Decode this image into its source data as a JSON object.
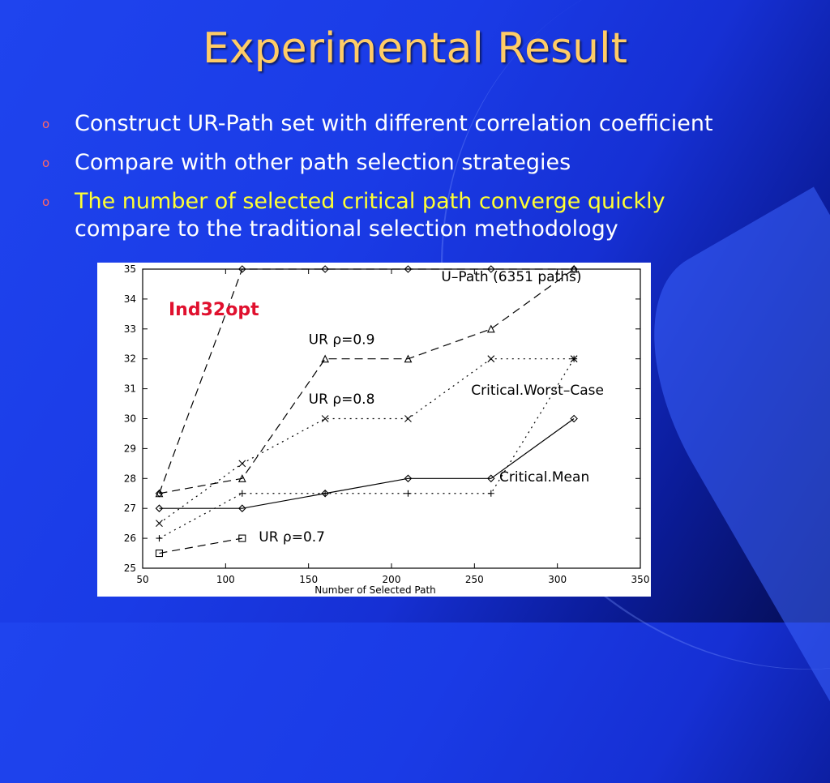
{
  "slide": {
    "title": "Experimental Result",
    "bullets": [
      {
        "marker": "o",
        "text": "Construct UR-Path set with different correlation coefficient",
        "highlight": "",
        "highlight_color": ""
      },
      {
        "marker": "o",
        "text": "Compare with other path selection strategies",
        "highlight": "",
        "highlight_color": ""
      },
      {
        "marker": "o",
        "highlight": "The number of selected critical path converge quickly",
        "text": "compare to the traditional selection methodology",
        "highlight_color": "#ffff33"
      }
    ],
    "colors": {
      "title": "#ffcc66",
      "bullet_text": "#ffffff",
      "bullet_marker": "#ff6666",
      "background": "#1a3be6"
    }
  },
  "chart_data": {
    "type": "line",
    "title": "",
    "xlabel": "Number of Selected Path",
    "ylabel": "",
    "xlim": [
      50,
      350
    ],
    "ylim": [
      25,
      35
    ],
    "x_ticks": [
      50,
      100,
      150,
      200,
      250,
      300,
      350
    ],
    "y_ticks": [
      25,
      26,
      27,
      28,
      29,
      30,
      31,
      32,
      33,
      34,
      35
    ],
    "grid": false,
    "tag": "Ind32opt",
    "tag_color": "#e0102e",
    "series": [
      {
        "name": "U–Path (6351 paths)",
        "style": "dashed",
        "marker": "diamond",
        "x": [
          60,
          110,
          160,
          210,
          260,
          310
        ],
        "y": [
          27.5,
          35,
          35,
          35,
          35,
          35
        ]
      },
      {
        "name": "UR ρ=0.9",
        "style": "dashed",
        "marker": "triangle",
        "x": [
          60,
          110,
          160,
          210,
          260,
          310
        ],
        "y": [
          27.5,
          28,
          32,
          32,
          33,
          35
        ]
      },
      {
        "name": "UR ρ=0.8",
        "style": "dotted",
        "marker": "x",
        "x": [
          60,
          110,
          160,
          210,
          260,
          310
        ],
        "y": [
          26.5,
          28.5,
          30,
          30,
          32,
          32
        ]
      },
      {
        "name": "Critical.Worst–Case",
        "style": "dotted",
        "marker": "plus",
        "x": [
          60,
          110,
          160,
          210,
          260,
          310
        ],
        "y": [
          26,
          27.5,
          27.5,
          27.5,
          27.5,
          32
        ]
      },
      {
        "name": "Critical.Mean",
        "style": "solid",
        "marker": "diamond",
        "x": [
          60,
          110,
          160,
          210,
          260,
          310
        ],
        "y": [
          27,
          27,
          27.5,
          28,
          28,
          30
        ]
      },
      {
        "name": "UR ρ=0.7",
        "style": "dashed",
        "marker": "square",
        "x": [
          60,
          110
        ],
        "y": [
          25.5,
          26
        ]
      }
    ],
    "annotations": [
      {
        "text": "U–Path (6351 paths)",
        "x": 230,
        "y": 34.6
      },
      {
        "text": "UR ρ=0.9",
        "x": 150,
        "y": 32.5
      },
      {
        "text": "UR ρ=0.8",
        "x": 150,
        "y": 30.5
      },
      {
        "text": "Critical.Worst–Case",
        "x": 248,
        "y": 30.8
      },
      {
        "text": "Critical.Mean",
        "x": 265,
        "y": 27.9
      },
      {
        "text": "UR ρ=0.7",
        "x": 120,
        "y": 25.9
      }
    ]
  }
}
